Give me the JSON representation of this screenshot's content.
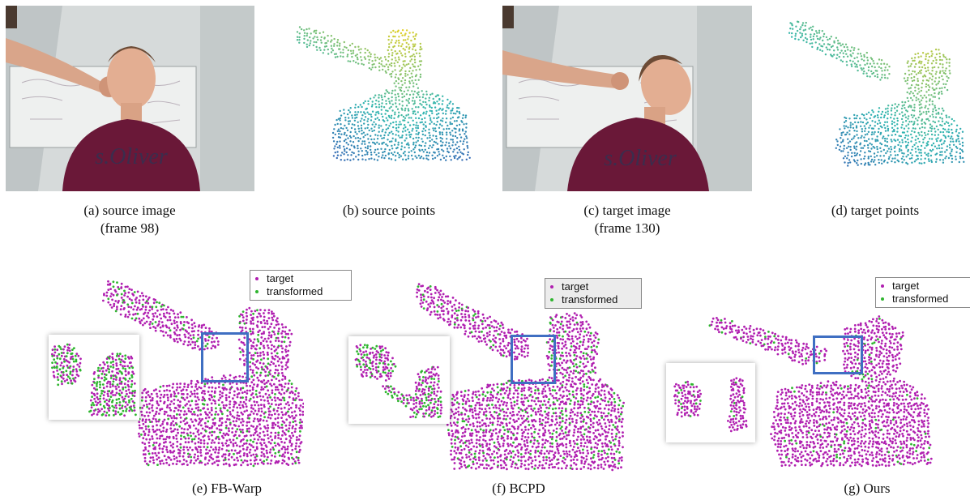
{
  "figure": {
    "panels": [
      {
        "id": "a",
        "caption_line1": "(a) source image",
        "caption_line2": "(frame 98)"
      },
      {
        "id": "b",
        "caption_line1": "(b) source points",
        "caption_line2": ""
      },
      {
        "id": "c",
        "caption_line1": "(c) target image",
        "caption_line2": "(frame 130)"
      },
      {
        "id": "d",
        "caption_line1": "(d) target points",
        "caption_line2": ""
      },
      {
        "id": "e",
        "caption_line1": "(e) FB-Warp",
        "caption_line2": ""
      },
      {
        "id": "f",
        "caption_line1": "(f) BCPD",
        "caption_line2": ""
      },
      {
        "id": "g",
        "caption_line1": "(g) Ours",
        "caption_line2": ""
      }
    ],
    "legend": {
      "target_label": "target",
      "transformed_label": "transformed"
    },
    "shirt_text": "s.Oliver",
    "colors": {
      "target": "#b01fb0",
      "transformed": "#2fb52f",
      "highlight_box": "#3f6fc2",
      "shirt": "#6a1838",
      "cloud_yellow": "#f2d21a",
      "cloud_teal": "#2fb5b0",
      "cloud_blue": "#3a4fb8"
    }
  }
}
